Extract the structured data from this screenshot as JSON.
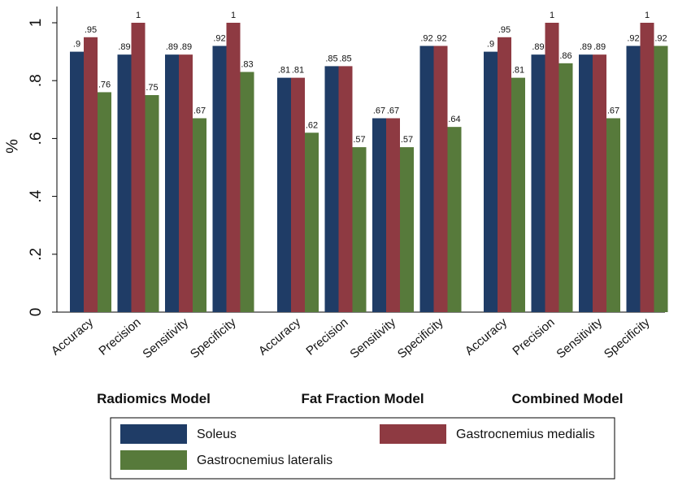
{
  "chart_data": {
    "type": "bar",
    "ylabel": "%",
    "ylim": [
      0,
      1
    ],
    "yticks": [
      0,
      0.2,
      0.4,
      0.6,
      0.8,
      1
    ],
    "ytick_labels": [
      "0",
      ".2",
      ".4",
      ".6",
      ".8",
      "1"
    ],
    "legend_position": "bottom",
    "groups": [
      {
        "name": "Radiomics Model",
        "categories": [
          "Accuracy",
          "Precision",
          "Sensitivity",
          "Specificity"
        ],
        "series": [
          {
            "name": "Soleus",
            "values": [
              0.9,
              0.89,
              0.89,
              0.92
            ],
            "labels": [
              ".9",
              ".89",
              ".89",
              ".92"
            ]
          },
          {
            "name": "Gastrocnemius medialis",
            "values": [
              0.95,
              1,
              0.89,
              1
            ],
            "labels": [
              ".95",
              "1",
              ".89",
              "1"
            ]
          },
          {
            "name": "Gastrocnemius lateralis",
            "values": [
              0.76,
              0.75,
              0.67,
              0.83
            ],
            "labels": [
              ".76",
              ".75",
              ".67",
              ".83"
            ]
          }
        ]
      },
      {
        "name": "Fat Fraction Model",
        "categories": [
          "Accuracy",
          "Precision",
          "Sensitivity",
          "Specificity"
        ],
        "series": [
          {
            "name": "Soleus",
            "values": [
              0.81,
              0.85,
              0.67,
              0.92
            ],
            "labels": [
              ".81",
              ".85",
              ".67",
              ".92"
            ]
          },
          {
            "name": "Gastrocnemius medialis",
            "values": [
              0.81,
              0.85,
              0.67,
              0.92
            ],
            "labels": [
              ".81",
              ".85",
              ".67",
              ".92"
            ]
          },
          {
            "name": "Gastrocnemius lateralis",
            "values": [
              0.62,
              0.57,
              0.57,
              0.64
            ],
            "labels": [
              ".62",
              ".57",
              ".57",
              ".64"
            ]
          }
        ]
      },
      {
        "name": "Combined Model",
        "categories": [
          "Accuracy",
          "Precision",
          "Sensitivity",
          "Specificity"
        ],
        "series": [
          {
            "name": "Soleus",
            "values": [
              0.9,
              0.89,
              0.89,
              0.92
            ],
            "labels": [
              ".9",
              ".89",
              ".89",
              ".92"
            ]
          },
          {
            "name": "Gastrocnemius medialis",
            "values": [
              0.95,
              1,
              0.89,
              1
            ],
            "labels": [
              ".95",
              "1",
              ".89",
              "1"
            ]
          },
          {
            "name": "Gastrocnemius lateralis",
            "values": [
              0.81,
              0.86,
              0.67,
              0.92
            ],
            "labels": [
              ".81",
              ".86",
              ".67",
              ".92"
            ]
          }
        ]
      }
    ],
    "legend": [
      {
        "name": "Soleus",
        "color": "#1f3c66"
      },
      {
        "name": "Gastrocnemius medialis",
        "color": "#8e3a42"
      },
      {
        "name": "Gastrocnemius lateralis",
        "color": "#577a3b"
      }
    ]
  }
}
